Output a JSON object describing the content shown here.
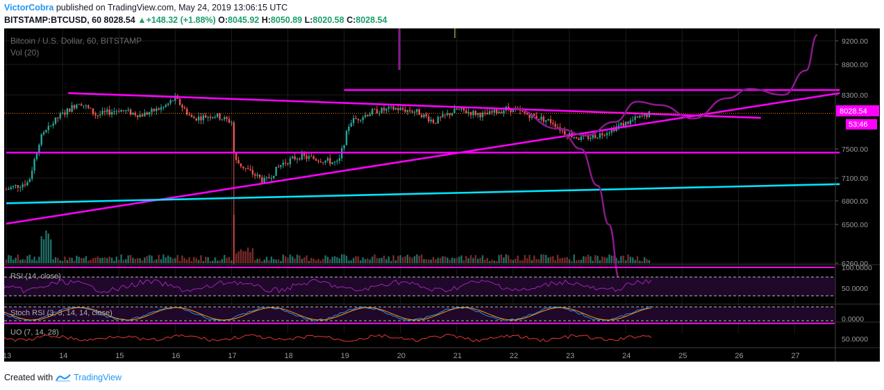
{
  "header": {
    "author": "VictorCobra",
    "published": "published on TradingView.com, May 24, 2019 13:06:15 UTC",
    "symbol": "BITSTAMP:BTCUSD, 60",
    "last": "8028.54",
    "change": "+148.32 (+1.88%)",
    "o_label": "O:",
    "o": "8045.92",
    "h_label": "H:",
    "h": "8050.89",
    "l_label": "L:",
    "l": "8020.58",
    "c_label": "C:",
    "c": "8028.54"
  },
  "legend": {
    "title": "Bitcoin / U.S. Dollar, 60, BITSTAMP",
    "vol": "Vol (20)"
  },
  "price_tag": "8028.54",
  "countdown": "53:46",
  "indicators": {
    "rsi": "RSI (14, close)",
    "stoch": "Stoch RSI (3, 3, 14, 14, close)",
    "uo": "UO (7, 14, 28)"
  },
  "footer": {
    "created": "Created with",
    "brand": "TradingView"
  },
  "colors": {
    "magenta": "#ff00ff",
    "cyan": "#00e5ff",
    "purple_curve": "#8b1a8b",
    "up": "#26a69a",
    "down": "#ef5350"
  },
  "chart_data": {
    "type": "candlestick",
    "title": "Bitcoin / U.S. Dollar, 60, BITSTAMP",
    "x_ticks": [
      "13",
      "14",
      "15",
      "16",
      "17",
      "18",
      "19",
      "20",
      "21",
      "22",
      "23",
      "24",
      "25",
      "26",
      "27"
    ],
    "y_ticks": [
      "9200.00",
      "8800.00",
      "8300.00",
      "7500.00",
      "7100.00",
      "6800.00",
      "6500.00",
      "6260.00"
    ],
    "rsi_ticks": [
      "100.0000",
      "50.0000"
    ],
    "stoch_ticks": [
      "0.0000"
    ],
    "uo_ticks": [
      "50.0000"
    ],
    "close_path": [
      [
        13.0,
        6950
      ],
      [
        13.4,
        7050
      ],
      [
        13.6,
        7650
      ],
      [
        13.9,
        7950
      ],
      [
        14.3,
        8200
      ],
      [
        14.6,
        8000
      ],
      [
        15.0,
        8080
      ],
      [
        15.4,
        8000
      ],
      [
        15.8,
        8120
      ],
      [
        16.0,
        8250
      ],
      [
        16.3,
        7950
      ],
      [
        16.7,
        8000
      ],
      [
        17.0,
        7900
      ],
      [
        17.05,
        7350
      ],
      [
        17.3,
        7200
      ],
      [
        17.6,
        7050
      ],
      [
        17.9,
        7300
      ],
      [
        18.2,
        7400
      ],
      [
        18.6,
        7350
      ],
      [
        18.9,
        7300
      ],
      [
        19.1,
        7900
      ],
      [
        19.5,
        8050
      ],
      [
        19.9,
        8100
      ],
      [
        20.3,
        8050
      ],
      [
        20.6,
        7900
      ],
      [
        21.0,
        8080
      ],
      [
        21.5,
        8000
      ],
      [
        21.9,
        8100
      ],
      [
        22.3,
        8000
      ],
      [
        22.7,
        7900
      ],
      [
        22.9,
        7750
      ],
      [
        23.2,
        7650
      ],
      [
        23.5,
        7700
      ],
      [
        23.9,
        7850
      ],
      [
        24.2,
        7950
      ],
      [
        24.45,
        8028.54
      ]
    ],
    "current": 8028.54,
    "volume_spike_day": 17.05,
    "trend_lines": [
      {
        "color": "magenta",
        "from": [
          13.0,
          6510
        ],
        "to": [
          27.8,
          8330
        ]
      },
      {
        "color": "magenta",
        "from": [
          14.1,
          8330
        ],
        "to": [
          26.4,
          7960
        ]
      },
      {
        "color": "magenta",
        "from": [
          13.0,
          7450
        ],
        "to": [
          27.8,
          7450
        ]
      },
      {
        "color": "magenta",
        "from": [
          19.0,
          8380
        ],
        "to": [
          27.8,
          8380
        ]
      },
      {
        "color": "cyan",
        "from": [
          13.0,
          6770
        ],
        "to": [
          27.8,
          7020
        ]
      }
    ],
    "projection_curve": [
      [
        22.0,
        8100
      ],
      [
        22.8,
        7800
      ],
      [
        23.3,
        7700
      ],
      [
        23.8,
        7900
      ],
      [
        24.2,
        8200
      ],
      [
        24.6,
        8150
      ],
      [
        25.2,
        7950
      ],
      [
        25.8,
        8250
      ],
      [
        26.2,
        8400
      ],
      [
        26.8,
        8300
      ],
      [
        27.2,
        8700
      ],
      [
        27.4,
        9300
      ]
    ],
    "drop_curve": [
      [
        22.9,
        7700
      ],
      [
        23.2,
        7500
      ],
      [
        23.5,
        7000
      ],
      [
        23.7,
        6500
      ],
      [
        23.9,
        6150
      ]
    ]
  }
}
